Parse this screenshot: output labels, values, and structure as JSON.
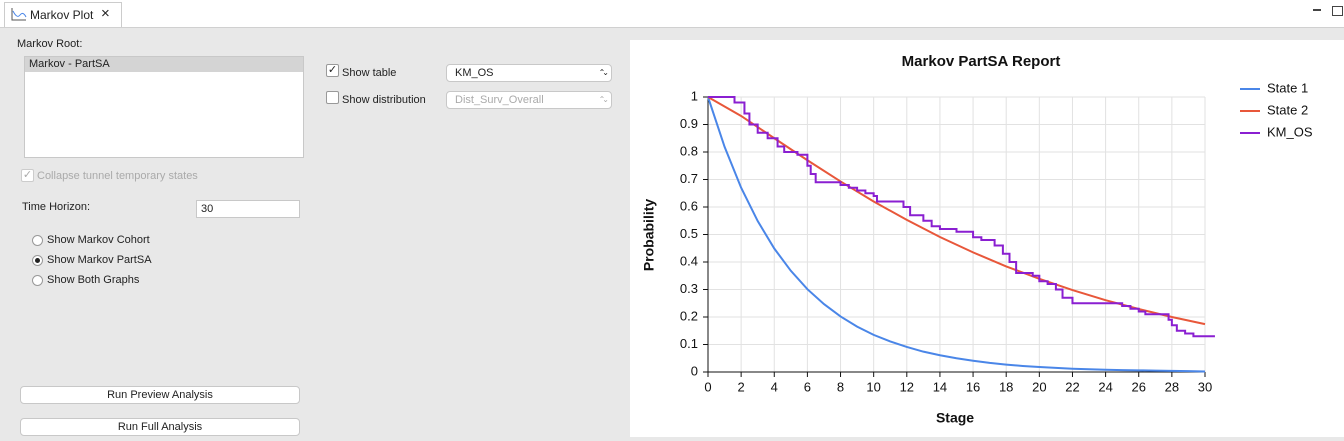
{
  "tab": {
    "title": "Markov Plot"
  },
  "panel": {
    "root_label": "Markov Root:",
    "root_items": [
      "Markov - PartSA"
    ],
    "collapse": {
      "label": "Collapse tunnel temporary states",
      "checked": true
    },
    "horizon": {
      "label": "Time Horizon:",
      "value": "30"
    },
    "radios": [
      {
        "label": "Show Markov Cohort",
        "selected": false
      },
      {
        "label": "Show Markov PartSA",
        "selected": true
      },
      {
        "label": "Show Both Graphs",
        "selected": false
      }
    ],
    "buttons": [
      "Run Preview Analysis",
      "Run Full Analysis"
    ],
    "show_table": {
      "label": "Show table",
      "checked": true,
      "select": "KM_OS"
    },
    "show_distribution": {
      "label": "Show distribution",
      "checked": false,
      "select": "Dist_Surv_Overall"
    }
  },
  "chart_data": {
    "type": "line",
    "title": "Markov PartSA Report",
    "x_label": "Stage",
    "y_label": "Probability",
    "xlim": [
      0,
      30
    ],
    "ylim": [
      0,
      1
    ],
    "xticks": [
      0,
      2,
      4,
      6,
      8,
      10,
      12,
      14,
      16,
      18,
      20,
      22,
      24,
      26,
      28,
      30
    ],
    "yticks": [
      0,
      0.1,
      0.2,
      0.3,
      0.4,
      0.5,
      0.6,
      0.7,
      0.8,
      0.9,
      1
    ],
    "grid": true,
    "legend": "right",
    "series": [
      {
        "name": "State 1",
        "color": "#4a86e8",
        "x": [
          0,
          1,
          2,
          3,
          4,
          5,
          6,
          7,
          8,
          9,
          10,
          11,
          12,
          13,
          14,
          15,
          16,
          17,
          18,
          19,
          20,
          21,
          22,
          23,
          24,
          25,
          26,
          27,
          28,
          29,
          30
        ],
        "values": [
          1,
          0.819,
          0.67,
          0.549,
          0.449,
          0.368,
          0.301,
          0.247,
          0.202,
          0.165,
          0.135,
          0.111,
          0.091,
          0.074,
          0.061,
          0.05,
          0.041,
          0.033,
          0.027,
          0.022,
          0.018,
          0.015,
          0.012,
          0.01,
          0.008,
          0.007,
          0.006,
          0.005,
          0.004,
          0.003,
          0.002
        ]
      },
      {
        "name": "State 2",
        "color": "#e8573a",
        "x": [
          0,
          2,
          4,
          6,
          8,
          10,
          12,
          14,
          16,
          18,
          20,
          22,
          24,
          26,
          28,
          30
        ],
        "values": [
          1,
          0.931,
          0.85,
          0.77,
          0.693,
          0.62,
          0.553,
          0.491,
          0.435,
          0.384,
          0.339,
          0.298,
          0.261,
          0.229,
          0.2,
          0.174
        ]
      },
      {
        "name": "KM_OS",
        "color": "#8a1fd1",
        "x": [
          0,
          1.6,
          1.6,
          2.2,
          2.2,
          2.5,
          2.5,
          3,
          3,
          3.6,
          3.6,
          4.2,
          4.2,
          4.6,
          4.6,
          5.4,
          5.4,
          6,
          6,
          6.2,
          6.2,
          6.5,
          6.5,
          8,
          8,
          8.5,
          8.5,
          9,
          9,
          9.5,
          9.5,
          10,
          10,
          10.2,
          10.2,
          11.8,
          11.8,
          12.2,
          12.2,
          13,
          13,
          13.5,
          13.5,
          14,
          14,
          15,
          15,
          16,
          16,
          16.5,
          16.5,
          17.3,
          17.3,
          17.8,
          17.8,
          18.2,
          18.2,
          18.6,
          18.6,
          19.6,
          19.6,
          20,
          20,
          20.5,
          20.5,
          21,
          21,
          21.4,
          21.4,
          22,
          22,
          25,
          25,
          25.5,
          25.5,
          26,
          26,
          26.4,
          26.4,
          27.8,
          27.8,
          28,
          28,
          28.3,
          28.3,
          28.8,
          28.8,
          29.3,
          29.3,
          30.6
        ],
        "values": [
          1,
          1,
          0.98,
          0.98,
          0.94,
          0.94,
          0.9,
          0.9,
          0.87,
          0.87,
          0.85,
          0.85,
          0.82,
          0.82,
          0.8,
          0.8,
          0.79,
          0.79,
          0.75,
          0.75,
          0.72,
          0.72,
          0.69,
          0.69,
          0.68,
          0.68,
          0.67,
          0.67,
          0.66,
          0.66,
          0.65,
          0.65,
          0.64,
          0.64,
          0.62,
          0.62,
          0.6,
          0.6,
          0.57,
          0.57,
          0.55,
          0.55,
          0.53,
          0.53,
          0.52,
          0.52,
          0.51,
          0.51,
          0.49,
          0.49,
          0.48,
          0.48,
          0.46,
          0.46,
          0.43,
          0.43,
          0.4,
          0.4,
          0.36,
          0.36,
          0.35,
          0.35,
          0.33,
          0.33,
          0.32,
          0.32,
          0.3,
          0.3,
          0.27,
          0.27,
          0.25,
          0.25,
          0.24,
          0.24,
          0.23,
          0.23,
          0.22,
          0.22,
          0.21,
          0.21,
          0.19,
          0.19,
          0.17,
          0.17,
          0.15,
          0.15,
          0.14,
          0.14,
          0.13,
          0.13
        ]
      }
    ]
  }
}
